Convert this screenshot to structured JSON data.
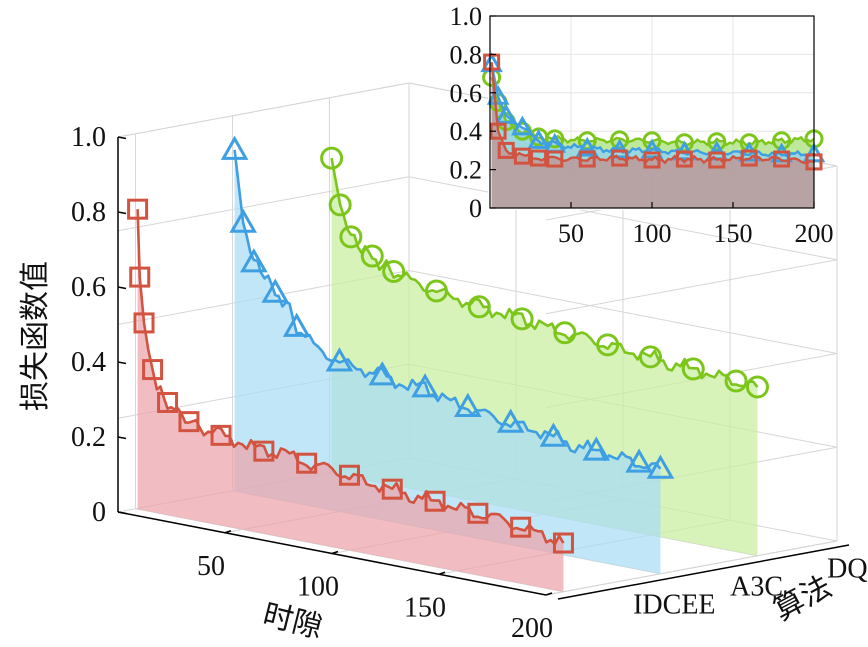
{
  "chart_data": [
    {
      "type": "line",
      "view": "3d-waterfall",
      "ylabel": "损失函数值",
      "xlabel": "时隙",
      "zlabel": "算法",
      "x_ticks": [
        50,
        100,
        150,
        200
      ],
      "y_ticks": [
        "0",
        "0.2",
        "0.4",
        "0.6",
        "0.8",
        "1.0"
      ],
      "ylim": [
        0,
        1.0
      ],
      "xlim": [
        0,
        200
      ],
      "categories": [
        "IDCEE",
        "A3C",
        "DQN"
      ],
      "grid": true,
      "series": [
        {
          "name": "IDCEE",
          "color": "#d2533f",
          "fill": "#eba3ab",
          "marker": "square",
          "x": [
            1,
            2,
            4,
            6,
            8,
            10,
            15,
            20,
            25,
            30,
            40,
            50,
            60,
            70,
            80,
            90,
            100,
            110,
            120,
            130,
            140,
            150,
            160,
            170,
            180,
            190,
            200
          ],
          "values": [
            0.8,
            0.62,
            0.5,
            0.43,
            0.38,
            0.33,
            0.3,
            0.28,
            0.26,
            0.25,
            0.24,
            0.23,
            0.22,
            0.225,
            0.21,
            0.205,
            0.2,
            0.19,
            0.185,
            0.18,
            0.175,
            0.17,
            0.165,
            0.16,
            0.15,
            0.14,
            0.13
          ]
        },
        {
          "name": "A3C",
          "color": "#3f9fe3",
          "fill": "#a8dcf5",
          "marker": "triangle",
          "x": [
            1,
            5,
            10,
            15,
            20,
            25,
            30,
            40,
            50,
            60,
            70,
            80,
            90,
            100,
            110,
            120,
            130,
            140,
            150,
            160,
            170,
            180,
            190,
            200
          ],
          "values": [
            0.91,
            0.72,
            0.62,
            0.6,
            0.55,
            0.53,
            0.47,
            0.42,
            0.4,
            0.39,
            0.385,
            0.37,
            0.375,
            0.35,
            0.345,
            0.33,
            0.325,
            0.32,
            0.31,
            0.3,
            0.295,
            0.29,
            0.285,
            0.28
          ]
        },
        {
          "name": "DQN",
          "color": "#7cc61c",
          "fill": "#c8ee9e",
          "marker": "circle",
          "x": [
            1,
            5,
            10,
            15,
            20,
            25,
            30,
            40,
            50,
            60,
            70,
            80,
            90,
            100,
            110,
            120,
            130,
            140,
            150,
            160,
            170,
            180,
            190,
            200
          ],
          "values": [
            0.84,
            0.72,
            0.64,
            0.62,
            0.6,
            0.58,
            0.57,
            0.55,
            0.54,
            0.53,
            0.52,
            0.515,
            0.51,
            0.5,
            0.495,
            0.49,
            0.485,
            0.48,
            0.475,
            0.47,
            0.465,
            0.46,
            0.455,
            0.45
          ]
        }
      ]
    },
    {
      "type": "line",
      "view": "inset",
      "x_ticks": [
        50,
        100,
        150,
        200
      ],
      "y_ticks": [
        "0",
        "0.2",
        "0.4",
        "0.6",
        "0.8",
        "1.0"
      ],
      "ylim": [
        0,
        1.0
      ],
      "xlim": [
        0,
        200
      ],
      "series": [
        {
          "name": "DQN",
          "color": "#7cc61c",
          "marker": "circle",
          "x": [
            1,
            5,
            10,
            20,
            30,
            40,
            60,
            80,
            100,
            120,
            140,
            160,
            180,
            200
          ],
          "values": [
            0.68,
            0.55,
            0.45,
            0.4,
            0.37,
            0.36,
            0.35,
            0.355,
            0.35,
            0.34,
            0.345,
            0.34,
            0.35,
            0.36
          ]
        },
        {
          "name": "A3C",
          "color": "#3f9fe3",
          "marker": "triangle",
          "x": [
            1,
            5,
            10,
            20,
            30,
            40,
            60,
            80,
            100,
            120,
            140,
            160,
            180,
            200
          ],
          "values": [
            0.75,
            0.58,
            0.48,
            0.42,
            0.35,
            0.33,
            0.31,
            0.3,
            0.3,
            0.29,
            0.29,
            0.285,
            0.28,
            0.28
          ]
        },
        {
          "name": "IDCEE",
          "color": "#d2533f",
          "marker": "square",
          "x": [
            1,
            5,
            10,
            20,
            30,
            40,
            60,
            80,
            100,
            120,
            140,
            160,
            180,
            200
          ],
          "values": [
            0.76,
            0.4,
            0.3,
            0.27,
            0.26,
            0.255,
            0.255,
            0.26,
            0.25,
            0.255,
            0.25,
            0.26,
            0.255,
            0.24
          ]
        }
      ]
    }
  ]
}
